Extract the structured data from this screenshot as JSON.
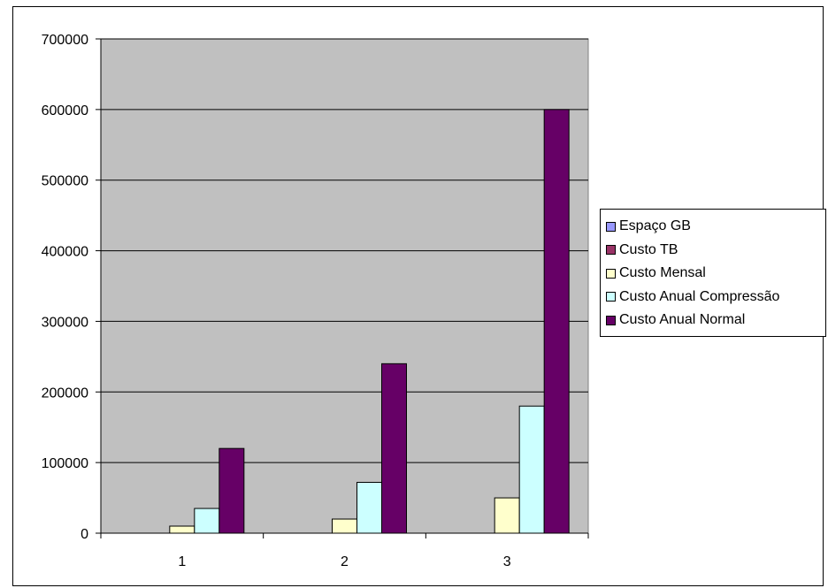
{
  "chart_data": {
    "type": "bar",
    "categories": [
      "1",
      "2",
      "3"
    ],
    "series": [
      {
        "name": "Espaço GB",
        "values": [
          0,
          0,
          0
        ],
        "color": "#9999FF"
      },
      {
        "name": "Custo TB",
        "values": [
          0,
          0,
          0
        ],
        "color": "#993366"
      },
      {
        "name": "Custo Mensal",
        "values": [
          10000,
          20000,
          50000
        ],
        "color": "#FFFFCC"
      },
      {
        "name": "Custo Anual Compressão",
        "values": [
          35000,
          72000,
          180000
        ],
        "color": "#CCFFFF"
      },
      {
        "name": "Custo Anual Normal",
        "values": [
          120000,
          240000,
          600000
        ],
        "color": "#660066"
      }
    ],
    "yticks": [
      "0",
      "100000",
      "200000",
      "300000",
      "400000",
      "500000",
      "600000",
      "700000"
    ],
    "ylim": [
      0,
      700000
    ],
    "grid": true,
    "plot_background": "#C0C0C0",
    "legend_position": "right"
  }
}
